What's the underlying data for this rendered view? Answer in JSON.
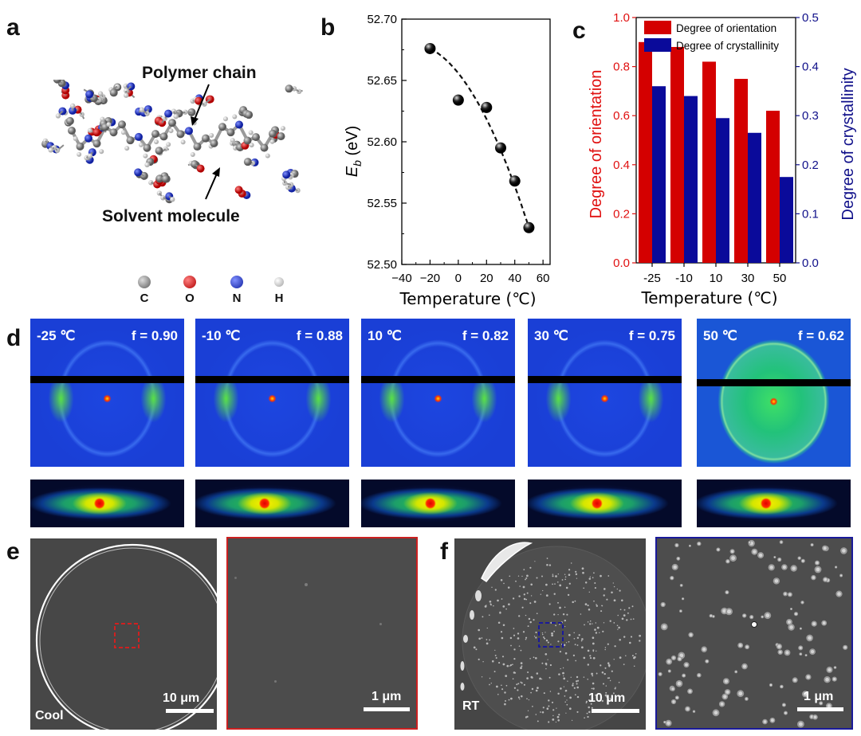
{
  "panels": {
    "a": "a",
    "b": "b",
    "c": "c",
    "d": "d",
    "e": "e",
    "f": "f"
  },
  "panel_a": {
    "label_top": "Polymer chain",
    "label_bottom": "Solvent molecule",
    "atoms": [
      {
        "symbol": "C",
        "color": "#808080"
      },
      {
        "symbol": "O",
        "color": "#e01010"
      },
      {
        "symbol": "N",
        "color": "#2030d0"
      },
      {
        "symbol": "H",
        "color": "#e8e8e8"
      }
    ]
  },
  "chart_data": [
    {
      "type": "scatter",
      "title": "",
      "xlabel": "Temperature (℃)",
      "ylabel": "Eb (eV)",
      "ylabel_main": "E",
      "ylabel_sub": "b",
      "ylabel_unit": " (eV)",
      "xlim": [
        -40,
        65
      ],
      "ylim": [
        52.5,
        52.7
      ],
      "xticks": [
        -40,
        -20,
        0,
        20,
        40,
        60
      ],
      "xtick_labels": [
        "−40",
        "−20",
        "0",
        "20",
        "40",
        "60"
      ],
      "yticks": [
        52.5,
        52.55,
        52.6,
        52.65,
        52.7
      ],
      "ytick_labels": [
        "52.50",
        "52.55",
        "52.60",
        "52.65",
        "52.70"
      ],
      "x": [
        -20,
        0,
        20,
        30,
        40,
        50
      ],
      "y": [
        52.676,
        52.634,
        52.628,
        52.595,
        52.568,
        52.53
      ],
      "fit": "dashed curve"
    },
    {
      "type": "bar",
      "xlabel": "Temperature (℃)",
      "ylabel_left": "Degree of orientation",
      "ylabel_right": "Degree of crystallinity",
      "categories": [
        "-25",
        "-10",
        "10",
        "30",
        "50"
      ],
      "ylim_left": [
        0,
        1.0
      ],
      "ylim_right": [
        0,
        0.5
      ],
      "yticks_left": [
        "0.0",
        "0.2",
        "0.4",
        "0.6",
        "0.8",
        "1.0"
      ],
      "yticks_right": [
        "0.0",
        "0.1",
        "0.2",
        "0.3",
        "0.4",
        "0.5"
      ],
      "legend_position": "top-left",
      "series": [
        {
          "name": "Degree of orientation",
          "axis": "left",
          "color": "#d40000",
          "values": [
            0.9,
            0.88,
            0.82,
            0.75,
            0.62
          ]
        },
        {
          "name": "Degree of crystallinity",
          "axis": "right",
          "color": "#0a0a9a",
          "values": [
            0.36,
            0.34,
            0.295,
            0.265,
            0.175
          ]
        }
      ],
      "left_color": "#e01010",
      "right_color": "#10108a"
    }
  ],
  "panel_d": {
    "images": [
      {
        "temp": "-25 ℃",
        "f": "f = 0.90"
      },
      {
        "temp": "-10 ℃",
        "f": "f = 0.88"
      },
      {
        "temp": "10 ℃",
        "f": "f = 0.82"
      },
      {
        "temp": "30 ℃",
        "f": "f = 0.75"
      },
      {
        "temp": "50 ℃",
        "f": "f = 0.62"
      }
    ]
  },
  "panel_e": {
    "label": "Cool",
    "scale_large": "10 μm",
    "scale_small": "1 μm",
    "frame_color": "#cc2020"
  },
  "panel_f": {
    "label": "RT",
    "scale_large": "10 μm",
    "scale_small": "1 μm",
    "frame_color": "#1a1a9a"
  }
}
